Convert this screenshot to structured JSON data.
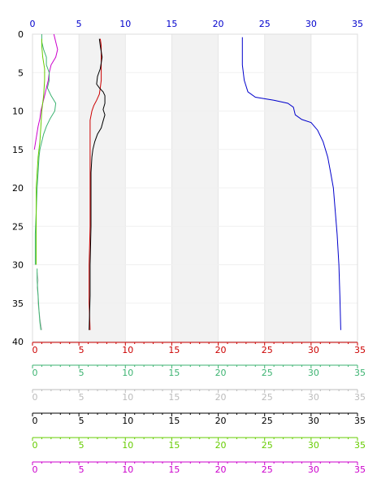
{
  "chart_data": {
    "type": "line",
    "title": "",
    "y_axis": {
      "range": [
        0,
        40
      ],
      "ticks": [
        0,
        5,
        10,
        15,
        20,
        25,
        30,
        35,
        40
      ],
      "inverted": true,
      "color": "#000000"
    },
    "top_axis": {
      "range": [
        0,
        35
      ],
      "ticks": [
        0,
        5,
        10,
        15,
        20,
        25,
        30,
        35
      ],
      "color": "#0000cc"
    },
    "bottom_axes": [
      {
        "range": [
          0,
          35
        ],
        "ticks": [
          0,
          5,
          10,
          15,
          20,
          25,
          30,
          35
        ],
        "color": "#cc0000"
      },
      {
        "range": [
          0,
          35
        ],
        "ticks": [
          0,
          5,
          10,
          15,
          20,
          25,
          30,
          35
        ],
        "color": "#3cb371"
      },
      {
        "range": [
          0,
          35
        ],
        "ticks": [
          0,
          5,
          10,
          15,
          20,
          25,
          30,
          35
        ],
        "color": "#bbbbbb"
      },
      {
        "range": [
          0,
          35
        ],
        "ticks": [
          0,
          5,
          10,
          15,
          20,
          25,
          30,
          35
        ],
        "color": "#000000"
      },
      {
        "range": [
          0,
          35
        ],
        "ticks": [
          0,
          5,
          10,
          15,
          20,
          25,
          30,
          35
        ],
        "color": "#66cc00"
      },
      {
        "range": [
          0,
          35
        ],
        "ticks": [
          0,
          5,
          10,
          15,
          20,
          25,
          30,
          35
        ],
        "color": "#cc00cc"
      }
    ],
    "grid": true,
    "shaded_bands": [
      [
        5,
        10
      ],
      [
        15,
        20
      ],
      [
        25,
        30
      ]
    ],
    "series": [
      {
        "color": "#0000cc",
        "points": [
          [
            22.6,
            0.4
          ],
          [
            22.6,
            4
          ],
          [
            22.8,
            6
          ],
          [
            23.2,
            7.5
          ],
          [
            24,
            8.2
          ],
          [
            26,
            8.6
          ],
          [
            27.5,
            9
          ],
          [
            28.1,
            9.5
          ],
          [
            28.3,
            10.5
          ],
          [
            29,
            11.1
          ],
          [
            30,
            11.5
          ],
          [
            30.7,
            12.5
          ],
          [
            31.3,
            14
          ],
          [
            31.8,
            16
          ],
          [
            32.1,
            18
          ],
          [
            32.4,
            20
          ],
          [
            32.6,
            23
          ],
          [
            32.8,
            26
          ],
          [
            33,
            30
          ],
          [
            33.1,
            34
          ],
          [
            33.2,
            38.5
          ]
        ]
      },
      {
        "color": "#cc0000",
        "points": [
          [
            7.3,
            0.6
          ],
          [
            7.4,
            1.5
          ],
          [
            7.4,
            3
          ],
          [
            7.4,
            5
          ],
          [
            7.4,
            6
          ],
          [
            7.3,
            7
          ],
          [
            7.2,
            7.8
          ],
          [
            6.9,
            8.6
          ],
          [
            6.6,
            9.3
          ],
          [
            6.4,
            10
          ],
          [
            6.2,
            11.2
          ],
          [
            6.2,
            12.5
          ],
          [
            6.2,
            15
          ],
          [
            6.2,
            20
          ],
          [
            6.2,
            25
          ],
          [
            6.1,
            30
          ],
          [
            6.1,
            35
          ],
          [
            6.2,
            38.5
          ]
        ]
      },
      {
        "color": "#000000",
        "points": [
          [
            7.2,
            0.6
          ],
          [
            7.3,
            1.5
          ],
          [
            7.5,
            3
          ],
          [
            7.3,
            4.5
          ],
          [
            7.0,
            5.5
          ],
          [
            6.9,
            6.5
          ],
          [
            7.2,
            7
          ],
          [
            7.6,
            7.5
          ],
          [
            7.8,
            8
          ],
          [
            7.8,
            9
          ],
          [
            7.6,
            9.8
          ],
          [
            7.8,
            10.5
          ],
          [
            7.6,
            11.3
          ],
          [
            7.4,
            12.2
          ],
          [
            7.0,
            13
          ],
          [
            6.7,
            14
          ],
          [
            6.5,
            15
          ],
          [
            6.4,
            16
          ],
          [
            6.3,
            18
          ],
          [
            6.3,
            20
          ],
          [
            6.3,
            25
          ],
          [
            6.2,
            30
          ],
          [
            6.2,
            34
          ],
          [
            6.1,
            38.5
          ]
        ]
      },
      {
        "color": "#cc00cc",
        "points": [
          [
            2.3,
            0
          ],
          [
            2.5,
            1
          ],
          [
            2.7,
            2
          ],
          [
            2.5,
            3
          ],
          [
            2.0,
            4
          ],
          [
            1.8,
            5
          ],
          [
            1.7,
            6
          ],
          [
            1.5,
            7
          ],
          [
            1.3,
            8
          ],
          [
            1.1,
            9
          ],
          [
            0.9,
            10
          ],
          [
            0.8,
            11
          ],
          [
            0.6,
            12
          ],
          [
            0.4,
            13.5
          ],
          [
            0.2,
            15
          ]
        ]
      },
      {
        "color": "#3cb371",
        "points": [
          [
            1.0,
            0
          ],
          [
            1.0,
            1
          ],
          [
            1.2,
            2
          ],
          [
            1.5,
            3
          ],
          [
            1.5,
            4
          ],
          [
            1.8,
            5
          ],
          [
            1.8,
            6
          ],
          [
            1.6,
            7
          ],
          [
            2.0,
            8
          ],
          [
            2.5,
            9
          ],
          [
            2.4,
            10
          ],
          [
            1.9,
            11
          ],
          [
            1.5,
            12
          ],
          [
            1.2,
            13
          ],
          [
            1.0,
            14
          ],
          [
            0.8,
            15
          ],
          [
            0.7,
            16
          ],
          [
            0.6,
            18
          ],
          [
            0.5,
            20
          ],
          [
            0.4,
            23
          ],
          [
            0.3,
            26
          ],
          [
            0.3,
            28
          ],
          [
            0.3,
            30
          ]
        ]
      },
      {
        "color": "#66cc00",
        "points": [
          [
            1.0,
            0.6
          ],
          [
            1.0,
            1.5
          ],
          [
            1.1,
            3
          ],
          [
            1.3,
            4.5
          ],
          [
            1.3,
            6
          ],
          [
            1.2,
            8
          ],
          [
            1.0,
            10
          ],
          [
            0.9,
            12
          ],
          [
            0.8,
            14
          ],
          [
            0.6,
            16
          ],
          [
            0.5,
            18
          ],
          [
            0.4,
            20
          ],
          [
            0.4,
            22
          ],
          [
            0.4,
            25
          ],
          [
            0.4,
            30
          ]
        ]
      },
      {
        "color": "#bbbbbb",
        "points": [
          [
            0.5,
            31
          ],
          [
            0.6,
            32
          ],
          [
            0.5,
            33
          ],
          [
            0.6,
            34
          ],
          [
            0.6,
            35
          ],
          [
            0.7,
            36
          ],
          [
            0.8,
            37
          ],
          [
            1.0,
            38.5
          ]
        ]
      },
      {
        "color": "#3cb371",
        "points": [
          [
            0.5,
            30.5
          ],
          [
            0.5,
            32
          ],
          [
            0.6,
            34
          ],
          [
            0.7,
            36
          ],
          [
            0.8,
            37.5
          ],
          [
            0.9,
            38.5
          ]
        ]
      }
    ]
  }
}
